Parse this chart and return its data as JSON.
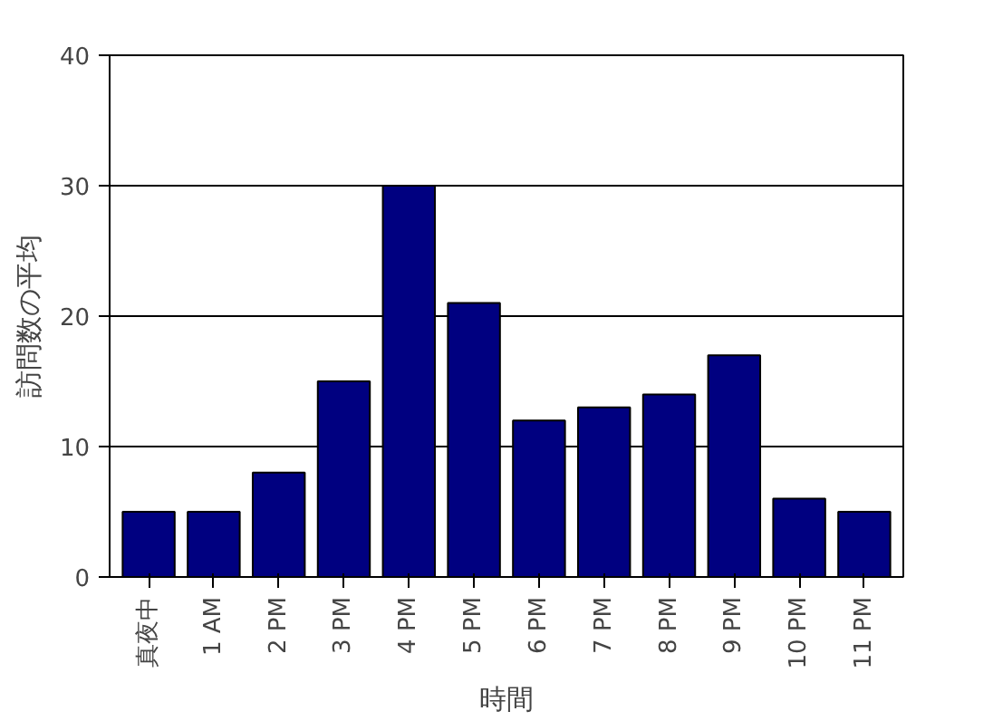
{
  "chart_data": {
    "type": "bar",
    "xlabel": "時間",
    "ylabel": "訪問数の平均",
    "categories": [
      "真夜中",
      "1 AM",
      "2 PM",
      "3 PM",
      "4 PM",
      "5 PM",
      "6 PM",
      "7 PM",
      "8 PM",
      "9 PM",
      "10 PM",
      "11 PM"
    ],
    "values": [
      5,
      5,
      8,
      15,
      30,
      21,
      12,
      13,
      14,
      17,
      6,
      5
    ],
    "color": "#000080",
    "ylim": [
      0,
      40
    ],
    "yticks": [
      0,
      10,
      20,
      30,
      40
    ],
    "grid": "y"
  }
}
